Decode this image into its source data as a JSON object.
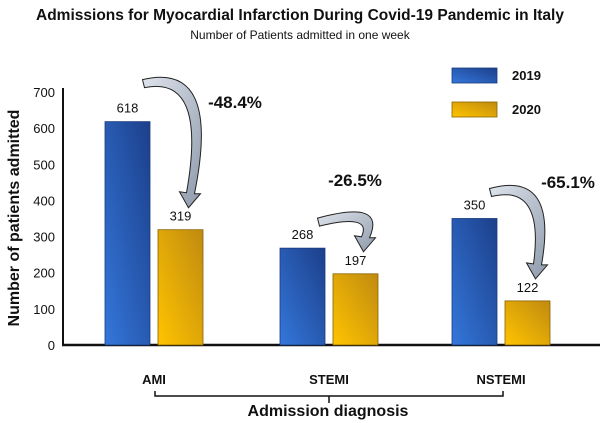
{
  "chart_data": {
    "type": "bar",
    "title": "Admissions for Myocardial Infarction During Covid-19 Pandemic in Italy",
    "subtitle": "Number of Patients admitted in one week",
    "xlabel": "Admission diagnosis",
    "ylabel": "Number of patients admitted",
    "categories": [
      "AMI",
      "STEMI",
      "NSTEMI"
    ],
    "series": [
      {
        "name": "2019",
        "values": [
          618,
          268,
          350
        ],
        "color": "#2a5fbf"
      },
      {
        "name": "2020",
        "values": [
          319,
          197,
          122
        ],
        "color": "#f2b400"
      }
    ],
    "annotations": [
      "-48.4%",
      "-26.5%",
      "-65.1%"
    ],
    "ylim": [
      0,
      700
    ],
    "yticks": [
      0,
      100,
      200,
      300,
      400,
      500,
      600,
      700
    ],
    "grid": false,
    "legend": "top-right"
  }
}
